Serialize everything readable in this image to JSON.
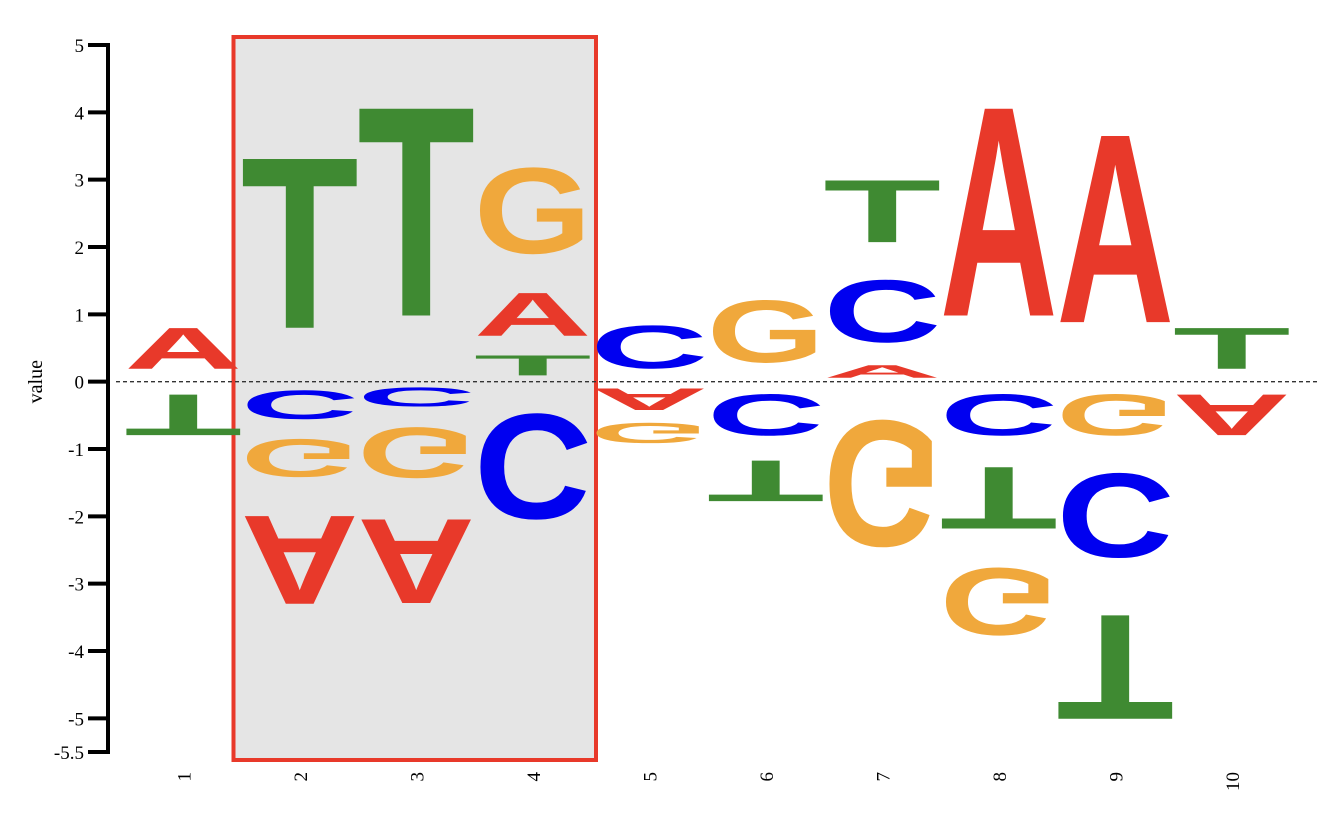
{
  "chart_data": {
    "type": "sequence-logo",
    "ylabel": "value",
    "ylim": [
      -5.5,
      5
    ],
    "y_ticks": [
      "5",
      "4",
      "3",
      "2",
      "1",
      "0",
      "-1",
      "-2",
      "-3",
      "-4",
      "-5",
      "-5.5"
    ],
    "x_ticks": [
      "1",
      "2",
      "3",
      "4",
      "5",
      "6",
      "7",
      "8",
      "9",
      "10"
    ],
    "highlight": {
      "from_position": 2,
      "to_position": 4,
      "fill": "#e5e5e5",
      "stroke": "#e8392a"
    },
    "colors": {
      "A": "#e8392a",
      "C": "#0000f0",
      "G": "#f0a83c",
      "T": "#3f8a32"
    },
    "positions": [
      {
        "position": "1",
        "positive": [
          {
            "letter": "A",
            "value": 0.98
          }
        ],
        "negative": [
          {
            "letter": "T",
            "value": 0.98
          }
        ]
      },
      {
        "position": "2",
        "positive": [
          {
            "letter": "T",
            "value": 4.08
          }
        ],
        "negative": [
          {
            "letter": "C",
            "value": 0.68
          },
          {
            "letter": "G",
            "value": 0.9
          },
          {
            "letter": "A",
            "value": 2.12
          }
        ]
      },
      {
        "position": "3",
        "positive": [
          {
            "letter": "T",
            "value": 5.0
          }
        ],
        "negative": [
          {
            "letter": "C",
            "value": 0.45
          },
          {
            "letter": "G",
            "value": 1.2
          },
          {
            "letter": "A",
            "value": 2.02
          }
        ]
      },
      {
        "position": "4",
        "positive": [
          {
            "letter": "T",
            "value": 0.48
          },
          {
            "letter": "A",
            "value": 1.03
          },
          {
            "letter": "G",
            "value": 2.04
          }
        ],
        "negative": [
          {
            "letter": "C",
            "value": 2.5
          }
        ]
      },
      {
        "position": "5",
        "positive": [
          {
            "letter": "C",
            "value": 1.02
          }
        ],
        "negative": [
          {
            "letter": "A",
            "value": 0.52
          },
          {
            "letter": "G",
            "value": 0.48
          }
        ]
      },
      {
        "position": "6",
        "positive": [
          {
            "letter": "G",
            "value": 1.48
          }
        ],
        "negative": [
          {
            "letter": "C",
            "value": 0.98
          },
          {
            "letter": "T",
            "value": 0.98
          }
        ]
      },
      {
        "position": "7",
        "positive": [
          {
            "letter": "A",
            "value": 0.3
          },
          {
            "letter": "C",
            "value": 1.48
          },
          {
            "letter": "T",
            "value": 1.49
          }
        ],
        "negative": [
          {
            "letter": "G",
            "value": 3.0
          }
        ]
      },
      {
        "position": "8",
        "positive": [
          {
            "letter": "A",
            "value": 5.0
          }
        ],
        "negative": [
          {
            "letter": "C",
            "value": 0.98
          },
          {
            "letter": "T",
            "value": 1.48
          },
          {
            "letter": "G",
            "value": 1.6
          }
        ]
      },
      {
        "position": "9",
        "positive": [
          {
            "letter": "A",
            "value": 4.5
          }
        ],
        "negative": [
          {
            "letter": "G",
            "value": 0.98
          },
          {
            "letter": "C",
            "value": 2.0
          },
          {
            "letter": "T",
            "value": 2.5
          }
        ]
      },
      {
        "position": "10",
        "positive": [
          {
            "letter": "T",
            "value": 0.98
          }
        ],
        "negative": [
          {
            "letter": "A",
            "value": 0.98
          }
        ]
      }
    ]
  }
}
